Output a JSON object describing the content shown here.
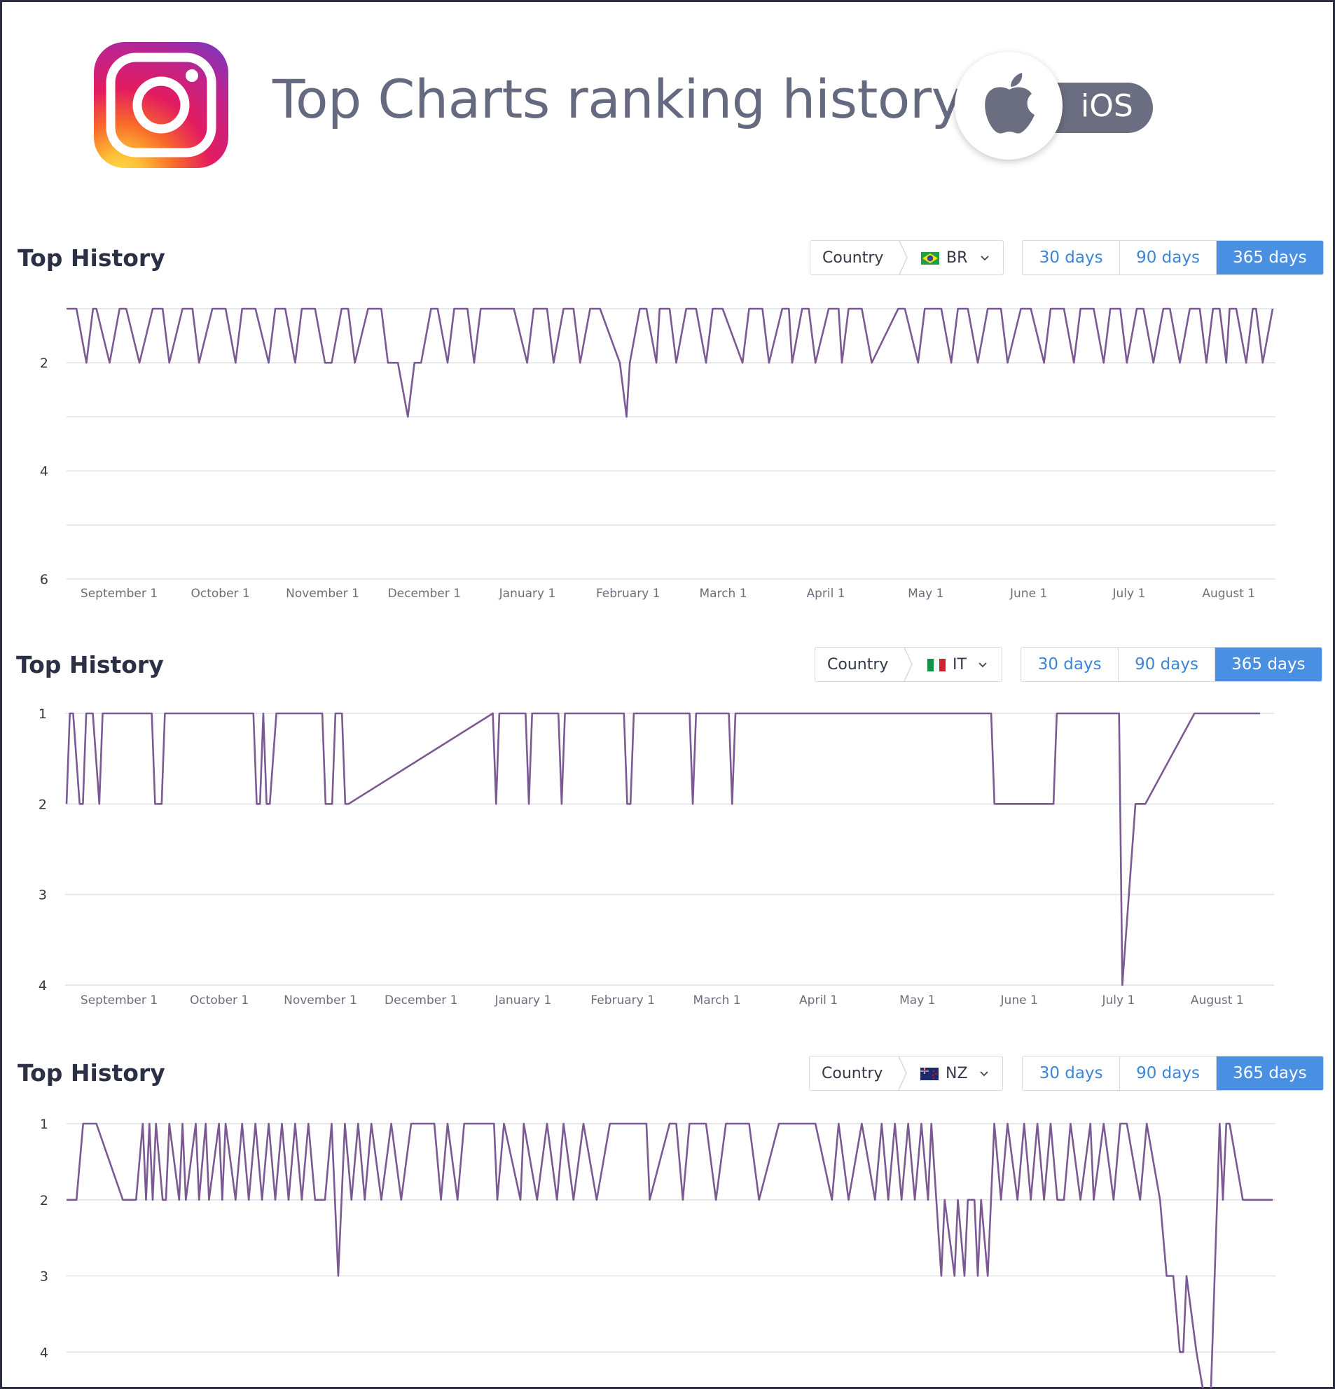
{
  "header": {
    "title": "Top Charts ranking history",
    "platform_label": "iOS",
    "app_icon": "instagram-icon",
    "platform_icon": "apple-icon"
  },
  "colors": {
    "line": "#7b5a94",
    "accent": "#4990e2",
    "grid": "#dfe1e6"
  },
  "sections": [
    {
      "title": "Top History",
      "country_label": "Country",
      "country_code": "BR",
      "ranges": [
        "30 days",
        "90 days",
        "365 days"
      ],
      "active_range": "365 days"
    },
    {
      "title": "Top History",
      "country_label": "Country",
      "country_code": "IT",
      "ranges": [
        "30 days",
        "90 days",
        "365 days"
      ],
      "active_range": "365 days"
    },
    {
      "title": "Top History",
      "country_label": "Country",
      "country_code": "NZ",
      "ranges": [
        "30 days",
        "90 days",
        "365 days"
      ],
      "active_range": "365 days"
    }
  ],
  "chart_data": [
    {
      "type": "line",
      "country": "BR",
      "ylim": [
        1,
        6
      ],
      "y_reversed": true,
      "yticks": [
        2,
        4,
        6
      ],
      "grid": true,
      "x_tick_labels": [
        "September 1",
        "October 1",
        "November 1",
        "December 1",
        "January 1",
        "February 1",
        "March 1",
        "April 1",
        "May 1",
        "June 1",
        "July 1",
        "August 1"
      ],
      "x": [
        0,
        3,
        6,
        8,
        9,
        13,
        16,
        18,
        22,
        26,
        29,
        31,
        35,
        38,
        40,
        44,
        48,
        51,
        53,
        57,
        61,
        63,
        66,
        69,
        71,
        75,
        78,
        80,
        83,
        85,
        87,
        91,
        95,
        97,
        100,
        103,
        105,
        107,
        110,
        112,
        115,
        117,
        121,
        123,
        125,
        135,
        139,
        141,
        145,
        147,
        150,
        153,
        155,
        158,
        161,
        167,
        169,
        170,
        173,
        175,
        178,
        179,
        182,
        184,
        187,
        190,
        193,
        195,
        198,
        204,
        206,
        210,
        212,
        216,
        218,
        219,
        222,
        224,
        226,
        230,
        233,
        234,
        236,
        240,
        243,
        251,
        253,
        257,
        259,
        264,
        267,
        269,
        272,
        275,
        278,
        282,
        284,
        288,
        291,
        295,
        297,
        301,
        304,
        306,
        310,
        313,
        315,
        318,
        320,
        323,
        325,
        328,
        331,
        333,
        336,
        339,
        342,
        344,
        346,
        348,
        350,
        351,
        353,
        356,
        358,
        359,
        361,
        364
      ],
      "values": [
        1,
        1,
        2,
        1,
        1,
        2,
        1,
        1,
        2,
        1,
        1,
        2,
        1,
        1,
        2,
        1,
        1,
        2,
        1,
        1,
        2,
        1,
        1,
        2,
        1,
        1,
        2,
        2,
        1,
        1,
        2,
        1,
        1,
        2,
        2,
        3,
        2,
        2,
        1,
        1,
        2,
        1,
        1,
        2,
        1,
        1,
        2,
        1,
        1,
        2,
        1,
        1,
        2,
        1,
        1,
        2,
        3,
        2,
        1,
        1,
        2,
        1,
        1,
        2,
        1,
        1,
        2,
        1,
        1,
        2,
        1,
        1,
        2,
        1,
        1,
        2,
        1,
        1,
        2,
        1,
        1,
        2,
        1,
        1,
        2,
        1,
        1,
        2,
        1,
        1,
        2,
        1,
        1,
        2,
        1,
        1,
        2,
        1,
        1,
        2,
        1,
        1,
        2,
        1,
        1,
        2,
        1,
        1,
        2,
        1,
        1,
        2,
        1,
        1,
        2,
        1,
        1,
        2,
        1,
        1,
        2,
        1,
        1,
        2,
        1,
        1,
        2,
        1
      ],
      "x_points_note": ""
    },
    {
      "type": "line",
      "country": "IT",
      "ylim": [
        1,
        4
      ],
      "y_reversed": true,
      "yticks": [
        1,
        2,
        3,
        4
      ],
      "grid": true,
      "x_tick_labels": [
        "September 1",
        "October 1",
        "November 1",
        "December 1",
        "January 1",
        "February 1",
        "March 1",
        "April 1",
        "May 1",
        "June 1",
        "July 1",
        "August 1"
      ],
      "x": [
        0,
        1,
        2,
        4,
        5,
        6,
        8,
        10,
        11,
        12,
        26,
        27,
        29,
        30,
        31,
        57,
        58,
        59,
        60,
        61,
        62,
        64,
        78,
        79,
        81,
        82,
        83,
        84,
        85,
        86,
        130,
        131,
        132,
        140,
        141,
        142,
        150,
        151,
        152,
        170,
        171,
        172,
        173,
        174,
        190,
        191,
        192,
        202,
        203,
        204,
        282,
        283,
        301,
        302,
        321,
        322,
        326,
        329,
        344,
        364
      ],
      "values": [
        2,
        1,
        1,
        2,
        2,
        1,
        1,
        2,
        1,
        1,
        1,
        2,
        2,
        1,
        1,
        1,
        2,
        2,
        1,
        2,
        2,
        1,
        1,
        2,
        2,
        1,
        1,
        1,
        2,
        2,
        1,
        2,
        1,
        1,
        2,
        1,
        1,
        2,
        1,
        1,
        2,
        2,
        1,
        1,
        1,
        2,
        1,
        1,
        2,
        1,
        1,
        2,
        2,
        1,
        1,
        4,
        2,
        2,
        1,
        1
      ],
      "x_points_note": ""
    },
    {
      "type": "line",
      "country": "NZ",
      "ylim": [
        1,
        5
      ],
      "y_reversed": true,
      "yticks": [
        1,
        2,
        3,
        4
      ],
      "grid": true,
      "x_tick_labels": [],
      "x": [
        0,
        3,
        5,
        9,
        17,
        18,
        19,
        21,
        23,
        24,
        25,
        26,
        27,
        29,
        30,
        31,
        34,
        35,
        36,
        39,
        40,
        42,
        43,
        46,
        47,
        48,
        51,
        53,
        55,
        57,
        59,
        61,
        63,
        65,
        67,
        69,
        71,
        73,
        75,
        78,
        80,
        82,
        84,
        86,
        88,
        90,
        92,
        95,
        98,
        101,
        104,
        106,
        111,
        113,
        115,
        118,
        120,
        129,
        130,
        132,
        137,
        138,
        142,
        145,
        148,
        150,
        153,
        156,
        160,
        164,
        167,
        175,
        176,
        182,
        184,
        186,
        188,
        193,
        196,
        199,
        206,
        209,
        215,
        225,
        226,
        231,
        233,
        236,
        240,
        244,
        246,
        248,
        250,
        252,
        254,
        256,
        258,
        260,
        261,
        264,
        265,
        268,
        269,
        271,
        272,
        274,
        275,
        276,
        278,
        279,
        280,
        282,
        284,
        287,
        289,
        291,
        293,
        295,
        297,
        299,
        301,
        303,
        306,
        309,
        310,
        313,
        316,
        318,
        320,
        324,
        326,
        330,
        332,
        334,
        336,
        337,
        338,
        341,
        345,
        348,
        349,
        350,
        351,
        355,
        356,
        364
      ],
      "values": [
        2,
        2,
        1,
        1,
        2,
        2,
        2,
        2,
        1,
        2,
        1,
        2,
        1,
        2,
        2,
        1,
        2,
        1,
        2,
        1,
        2,
        1,
        2,
        1,
        2,
        1,
        2,
        1,
        2,
        1,
        2,
        1,
        2,
        1,
        2,
        1,
        2,
        1,
        2,
        2,
        1,
        3,
        1,
        2,
        1,
        2,
        1,
        2,
        1,
        2,
        1,
        1,
        1,
        2,
        1,
        2,
        1,
        1,
        2,
        1,
        2,
        1,
        2,
        1,
        2,
        1,
        2,
        1,
        2,
        1,
        1,
        1,
        2,
        1,
        1,
        2,
        1,
        1,
        2,
        1,
        1,
        2,
        1,
        1,
        1,
        2,
        1,
        2,
        1,
        2,
        1,
        2,
        1,
        2,
        1,
        2,
        1,
        2,
        1,
        3,
        2,
        3,
        2,
        3,
        2,
        2,
        3,
        2,
        3,
        2,
        1,
        2,
        1,
        2,
        1,
        2,
        1,
        2,
        1,
        2,
        2,
        1,
        2,
        1,
        2,
        1,
        2,
        1,
        1,
        2,
        1,
        2,
        3,
        3,
        4,
        4,
        3,
        4,
        5,
        1,
        2,
        1,
        1,
        2,
        2,
        2
      ],
      "x_points_note": ""
    }
  ]
}
